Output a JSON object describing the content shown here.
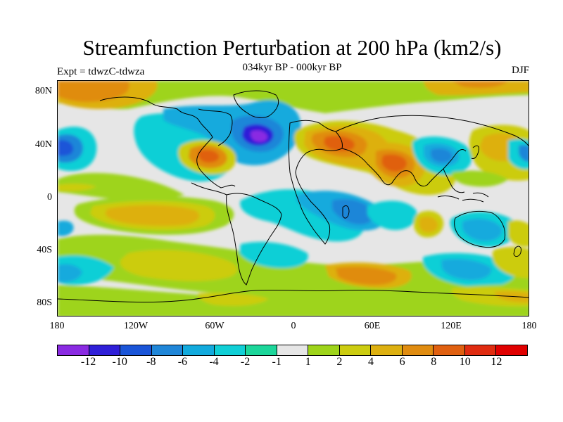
{
  "title": "Streamfunction Perturbation at 200 hPa (km2/s)",
  "subtitle": "034kyr BP - 000kyr BP",
  "left_label": "Expt = tdwzC-tdwza",
  "right_label": "DJF",
  "lat_labels": [
    "80N",
    "40N",
    "0",
    "40S",
    "80S"
  ],
  "lon_labels": [
    "180",
    "120W",
    "60W",
    "0",
    "60E",
    "120E",
    "180"
  ],
  "colorbar": {
    "labels": [
      "-12",
      "-10",
      "-8",
      "-6",
      "-4",
      "-2",
      "-1",
      "1",
      "2",
      "4",
      "6",
      "8",
      "10",
      "12"
    ],
    "colors": [
      "#8a2be2",
      "#2f1fd8",
      "#1a55d8",
      "#1f86d8",
      "#12aadd",
      "#10cfd6",
      "#1cd69a",
      "#e6e6e6",
      "#9ed41a",
      "#cccc10",
      "#ddb010",
      "#e08c10",
      "#e06010",
      "#e02c10",
      "#e00000"
    ]
  },
  "colors": {
    "background": "#e6e6e6",
    "coast": "#000000"
  }
}
